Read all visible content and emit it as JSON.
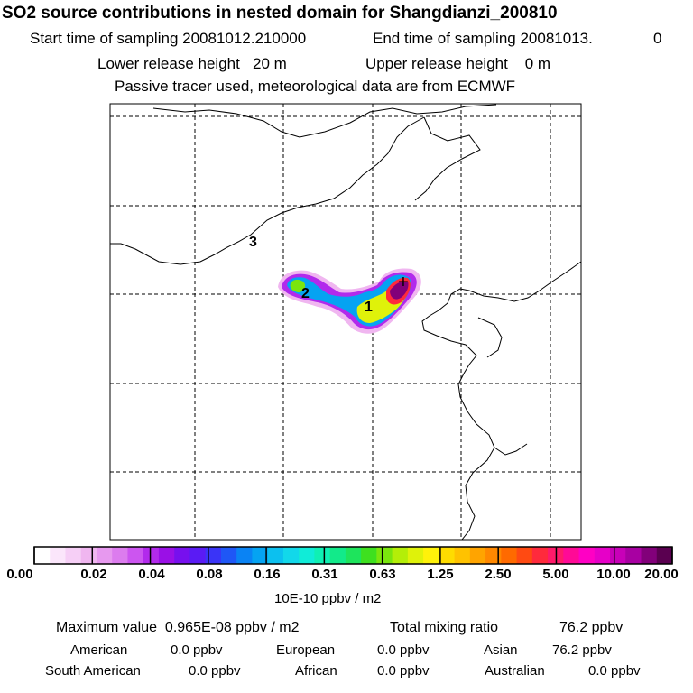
{
  "header": {
    "title": "SO2 source contributions in nested domain for Shangdianzi_200810",
    "start_label": "Start time of sampling 20081012.210000",
    "end_label": "End time of sampling 20081013.",
    "end_suffix": "0",
    "lower_height": "Lower release height   20 m",
    "upper_height": "Upper release height    0 m",
    "tracer_note": "Passive tracer used, meteorological data are from ECMWF"
  },
  "map": {
    "contour_labels": [
      "3",
      "2",
      "1"
    ],
    "station_marker": "+"
  },
  "colorbar": {
    "ticks": [
      "0.00",
      "0.02",
      "0.04",
      "0.08",
      "0.16",
      "0.31",
      "0.63",
      "1.25",
      "2.50",
      "5.00",
      "10.00",
      "20.00"
    ],
    "colors": [
      "#ffffff",
      "#fbe6fb",
      "#f6cff6",
      "#f0b6f0",
      "#e799ef",
      "#dc7cee",
      "#cc55f0",
      "#b22aec",
      "#9a10e6",
      "#7710ee",
      "#5a1bf4",
      "#3a34f7",
      "#1f57f6",
      "#0a83f4",
      "#05a3f2",
      "#0cc0ef",
      "#12d8ea",
      "#10ecd8",
      "#0ff0b4",
      "#12ea8a",
      "#1ee45c",
      "#3ee01f",
      "#7ae60e",
      "#b4ee08",
      "#dff20a",
      "#fff20a",
      "#ffdc00",
      "#ffc200",
      "#ffa400",
      "#ff8800",
      "#ff6a00",
      "#ff4a12",
      "#ff2a3c",
      "#ff1a6a",
      "#ff0a96",
      "#ff00c4",
      "#e600c8",
      "#c800b8",
      "#a800a2",
      "#82007a",
      "#5a0050"
    ],
    "unit": "10E-10 ppbv / m2"
  },
  "summary": {
    "max_value": "Maximum value  0.965E-08 ppbv / m2",
    "total": "Total mixing ratio",
    "total_value": "76.2 ppbv",
    "regions": [
      {
        "name": "American",
        "value": "0.0 ppbv"
      },
      {
        "name": "European",
        "value": "0.0 ppbv"
      },
      {
        "name": "Asian",
        "value": "76.2 ppbv"
      },
      {
        "name": "South American",
        "value": "0.0 ppbv"
      },
      {
        "name": "African",
        "value": "0.0 ppbv"
      },
      {
        "name": "Australian",
        "value": "0.0 ppbv"
      }
    ]
  }
}
